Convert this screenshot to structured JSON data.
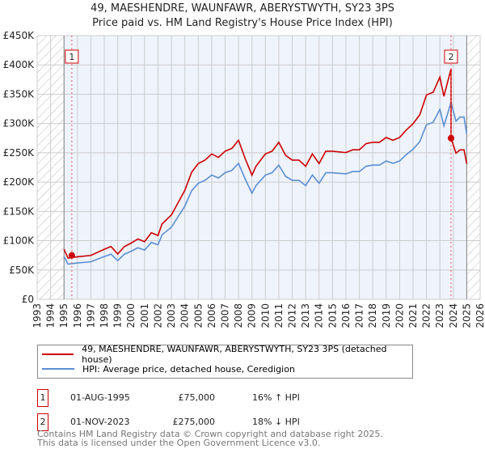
{
  "chart_data": {
    "type": "line",
    "title": "49, MAESHENDRE, WAUNFAWR, ABERYSTWYTH, SY23 3PS",
    "subtitle": "Price paid vs. HM Land Registry's House Price Index (HPI)",
    "xlim": [
      1993,
      2026
    ],
    "ylim": [
      0,
      450000
    ],
    "y_ticks": [
      0,
      50000,
      100000,
      150000,
      200000,
      250000,
      300000,
      350000,
      400000,
      450000
    ],
    "y_tick_labels": [
      "£0",
      "£50K",
      "£100K",
      "£150K",
      "£200K",
      "£250K",
      "£300K",
      "£350K",
      "£400K",
      "£450K"
    ],
    "x_ticks": [
      "1993",
      "1994",
      "1995",
      "1996",
      "1997",
      "1998",
      "1999",
      "2000",
      "2001",
      "2002",
      "2003",
      "2004",
      "2005",
      "2006",
      "2007",
      "2008",
      "2009",
      "2010",
      "2011",
      "2012",
      "2013",
      "2014",
      "2015",
      "2016",
      "2017",
      "2018",
      "2019",
      "2020",
      "2021",
      "2022",
      "2023",
      "2024",
      "2025",
      "2026"
    ],
    "data_range": [
      1995.0,
      2025.0
    ],
    "grid": true,
    "series": [
      {
        "name": "49, MAESHENDRE, WAUNFAWR, ABERYSTWYTH, SY23 3PS (detached house)",
        "color": "#cc0000",
        "derived_from_hpi_ratios": [
          1.17,
          0.82
        ]
      },
      {
        "name": "HPI: Average price, detached house, Ceredigion",
        "color": "#5b8fd4",
        "x": [
          1995.0,
          1995.3,
          1996.0,
          1997.0,
          1998.0,
          1998.5,
          1999.0,
          1999.5,
          2000.0,
          2000.5,
          2001.0,
          2001.5,
          2002.0,
          2002.3,
          2003.0,
          2003.5,
          2004.0,
          2004.5,
          2005.0,
          2005.5,
          2006.0,
          2006.5,
          2007.0,
          2007.5,
          2008.0,
          2008.5,
          2009.0,
          2009.3,
          2010.0,
          2010.5,
          2011.0,
          2011.5,
          2012.0,
          2012.5,
          2013.0,
          2013.5,
          2014.0,
          2014.5,
          2015.0,
          2016.0,
          2016.5,
          2017.0,
          2017.5,
          2018.0,
          2018.5,
          2019.0,
          2019.5,
          2020.0,
          2020.5,
          2021.0,
          2021.5,
          2022.0,
          2022.5,
          2023.0,
          2023.3,
          2023.83,
          2024.2,
          2024.5,
          2024.8,
          2025.0
        ],
        "y": [
          73000,
          60000,
          62000,
          64000,
          73000,
          77000,
          66000,
          77000,
          82000,
          88000,
          84000,
          97000,
          93000,
          110000,
          123000,
          141000,
          159000,
          185000,
          198000,
          203000,
          212000,
          207000,
          216000,
          220000,
          232000,
          205000,
          181000,
          194000,
          212000,
          216000,
          229000,
          210000,
          203000,
          203000,
          194000,
          212000,
          198000,
          216000,
          216000,
          214000,
          218000,
          218000,
          227000,
          229000,
          229000,
          236000,
          232000,
          236000,
          247000,
          256000,
          269000,
          298000,
          302000,
          324000,
          296000,
          336000,
          304000,
          311000,
          311000,
          282000
        ]
      }
    ],
    "sales": [
      {
        "label": "1",
        "x": 1995.58,
        "date": "01-AUG-1995",
        "price": "£75,000",
        "value": 75000,
        "hpi_diff": "16% ↑ HPI"
      },
      {
        "label": "2",
        "x": 2023.83,
        "date": "01-NOV-2023",
        "price": "£275,000",
        "value": 275000,
        "hpi_diff": "18% ↓ HPI"
      }
    ],
    "legend_placement": "below"
  },
  "footer": {
    "line1": "Contains HM Land Registry data © Crown copyright and database right 2025.",
    "line2": "This data is licensed under the Open Government Licence v3.0."
  }
}
